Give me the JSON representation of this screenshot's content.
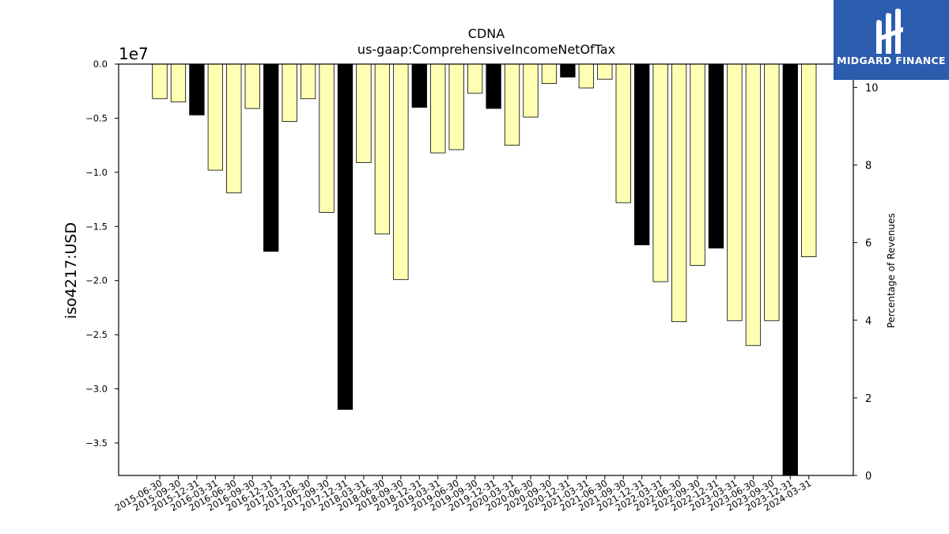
{
  "chart_data": {
    "type": "bar",
    "title": "CDNA",
    "subtitle": "us-gaap:ComprehensiveIncomeNetOfTax",
    "ylabel": "iso4217:USD",
    "y2label": "Percentage of Revenues",
    "offset_label": "1e7",
    "ylim": [
      -38000000,
      0
    ],
    "y2lim": [
      0,
      10.6
    ],
    "yticks": [
      0,
      -5000000,
      -10000000,
      -15000000,
      -20000000,
      -25000000,
      -30000000,
      -35000000
    ],
    "ytick_labels": [
      "0.0",
      "−0.5",
      "−1.0",
      "−1.5",
      "−2.0",
      "−2.5",
      "−3.0",
      "−3.5"
    ],
    "y2ticks": [
      0,
      2,
      4,
      6,
      8,
      10
    ],
    "y2tick_labels": [
      "0",
      "2",
      "4",
      "6",
      "8",
      "10"
    ],
    "grid": false,
    "colors": {
      "normal": "#ffffb3",
      "highlight": "#000000",
      "edge": "#000000"
    },
    "categories": [
      "2015-06-30",
      "2015-09-30",
      "2015-12-31",
      "2016-03-31",
      "2016-06-30",
      "2016-09-30",
      "2016-12-31",
      "2017-03-31",
      "2017-06-30",
      "2017-09-30",
      "2017-12-31",
      "2018-03-31",
      "2018-06-30",
      "2018-09-30",
      "2018-12-31",
      "2019-03-31",
      "2019-06-30",
      "2019-09-30",
      "2019-12-31",
      "2020-03-31",
      "2020-06-30",
      "2020-09-30",
      "2020-12-31",
      "2021-03-31",
      "2021-06-30",
      "2021-09-30",
      "2021-12-31",
      "2022-03-31",
      "2022-06-30",
      "2022-09-30",
      "2022-12-31",
      "2023-03-31",
      "2023-06-30",
      "2023-09-30",
      "2023-12-31",
      "2024-03-31"
    ],
    "values": [
      -3200000,
      -3500000,
      -4700000,
      -9800000,
      -11900000,
      -4100000,
      -17300000,
      -5300000,
      -3200000,
      -13700000,
      -31900000,
      -9100000,
      -15700000,
      -19900000,
      -4000000,
      -8200000,
      -7900000,
      -2700000,
      -4100000,
      -7500000,
      -4900000,
      -1800000,
      -1200000,
      -2200000,
      -1400000,
      -12800000,
      -16700000,
      -20100000,
      -23800000,
      -18600000,
      -17000000,
      -23700000,
      -26000000,
      -23700000,
      -38000000,
      -17800000
    ],
    "highlight": [
      false,
      false,
      true,
      false,
      false,
      false,
      true,
      false,
      false,
      false,
      true,
      false,
      false,
      false,
      true,
      false,
      false,
      false,
      true,
      false,
      false,
      false,
      true,
      false,
      false,
      false,
      true,
      false,
      false,
      false,
      true,
      false,
      false,
      false,
      true,
      false
    ]
  },
  "logo": {
    "text": "MIDGARD FINANCE"
  }
}
